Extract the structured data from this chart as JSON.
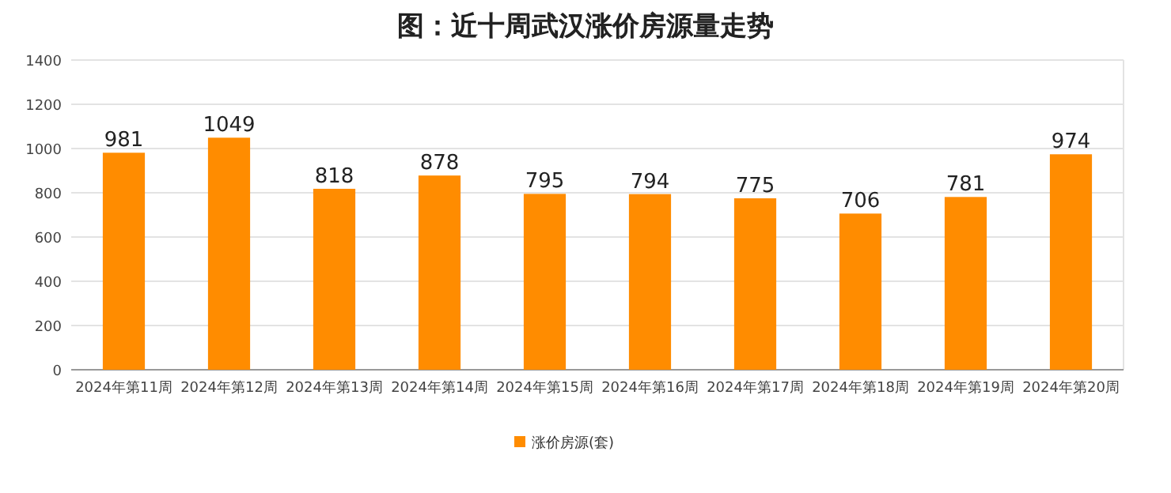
{
  "chart_data": {
    "type": "bar",
    "title": "图：近十周武汉涨价房源量走势",
    "categories": [
      "2024年第11周",
      "2024年第12周",
      "2024年第13周",
      "2024年第14周",
      "2024年第15周",
      "2024年第16周",
      "2024年第17周",
      "2024年第18周",
      "2024年第19周",
      "2024年第20周"
    ],
    "series": [
      {
        "name": "涨价房源(套)",
        "color": "#ff8c00",
        "values": [
          981,
          1049,
          818,
          878,
          795,
          794,
          775,
          706,
          781,
          974
        ]
      }
    ],
    "ylim": [
      0,
      1400
    ],
    "yticks": [
      0,
      200,
      400,
      600,
      800,
      1000,
      1200,
      1400
    ],
    "grid": "y",
    "legend": "bottom",
    "data_labels": true
  }
}
